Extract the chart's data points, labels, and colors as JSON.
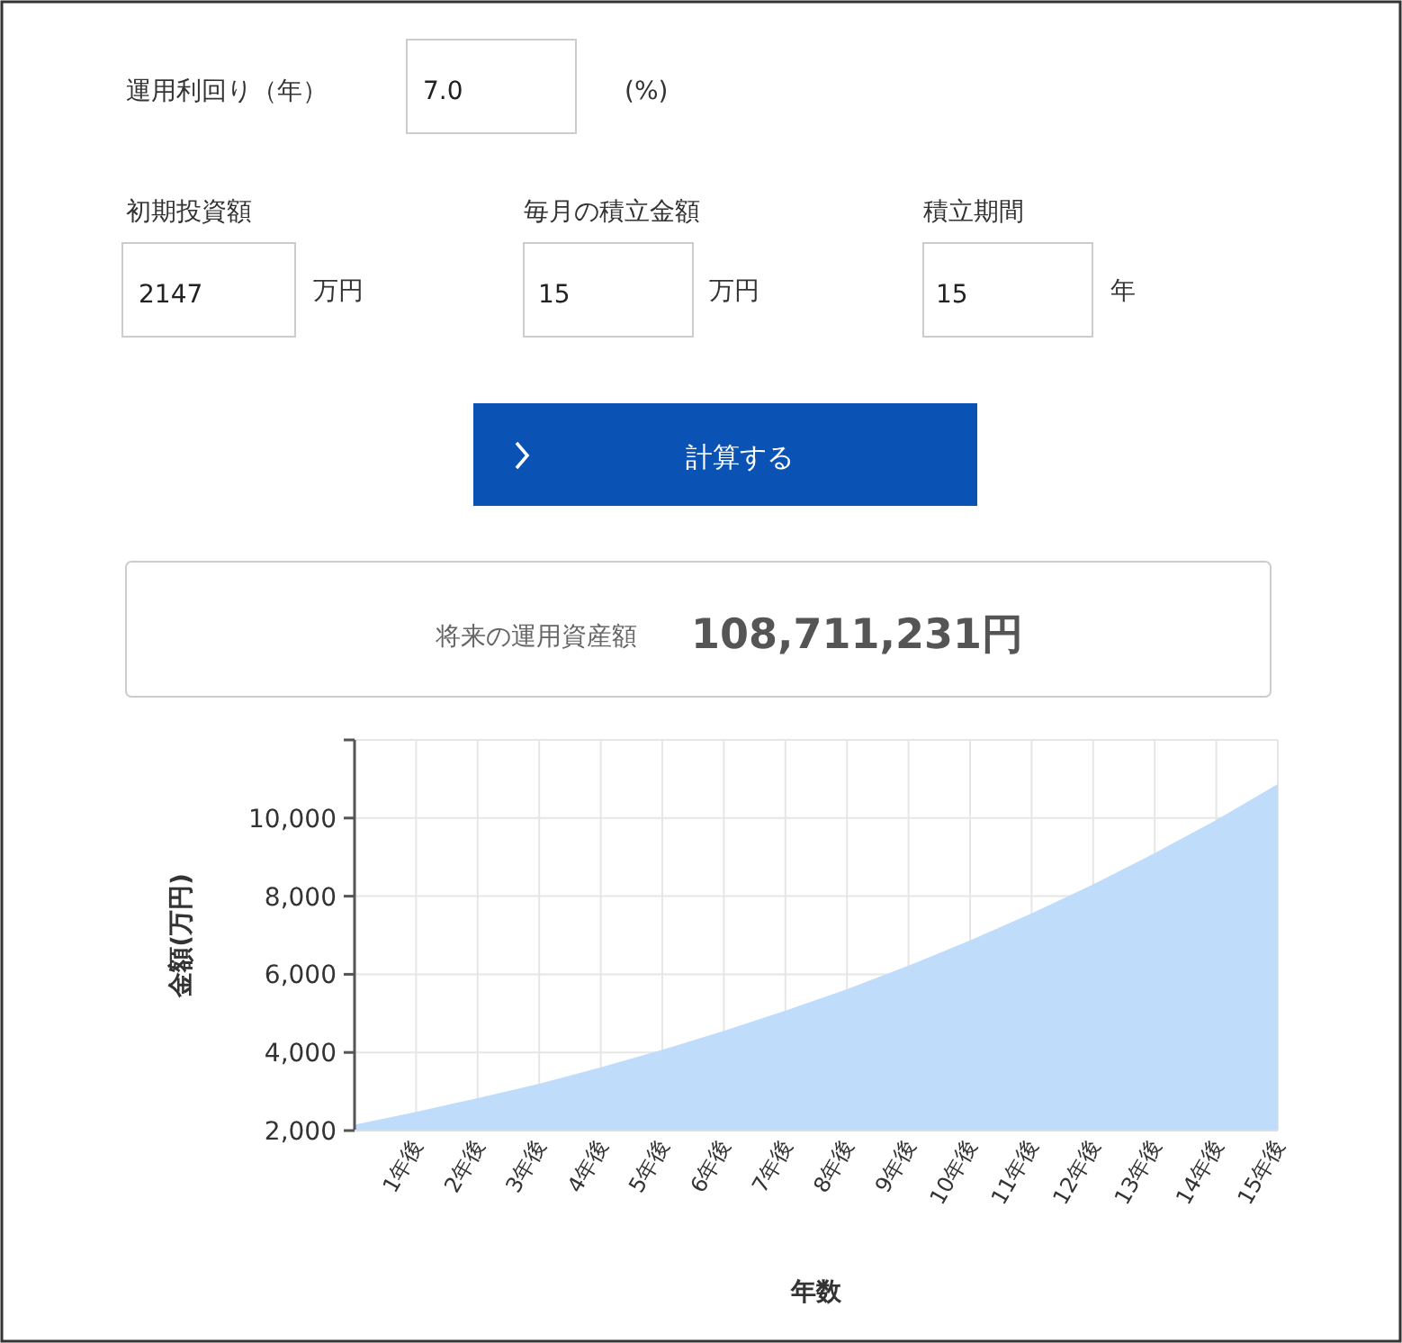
{
  "chart_data": {
    "type": "area",
    "xlabel": "年数",
    "ylabel": "金額(万円)",
    "categories": [
      null,
      "1年後",
      "2年後",
      "3年後",
      "4年後",
      "5年後",
      "6年後",
      "7年後",
      "8年後",
      "9年後",
      "10年後",
      "11年後",
      "12年後",
      "13年後",
      "14年後",
      "15年後"
    ],
    "values": [
      2147,
      2480,
      2830,
      3200,
      3620,
      4070,
      4550,
      5070,
      5620,
      6220,
      6870,
      7560,
      8300,
      9100,
      9950,
      10870
    ],
    "color": "#bfdcfb",
    "ylim": [
      2000,
      12000
    ],
    "yticks": [
      {
        "value": 2000,
        "label": "2,000"
      },
      {
        "value": 4000,
        "label": "4,000"
      },
      {
        "value": 6000,
        "label": "6,000"
      },
      {
        "value": 8000,
        "label": "8,000"
      },
      {
        "value": 10000,
        "label": "10,000"
      },
      {
        "value": 12000,
        "label": null
      }
    ],
    "grid": true,
    "annotations": [
      "運用利回り（年）",
      "7.0",
      "(%)",
      "初期投資額",
      "2147",
      "万円",
      "毎月の積立金額",
      "15",
      "万円",
      "積立期間",
      "15",
      "年",
      "計算する",
      "将来の運用資産額",
      "108,711,231円"
    ]
  }
}
